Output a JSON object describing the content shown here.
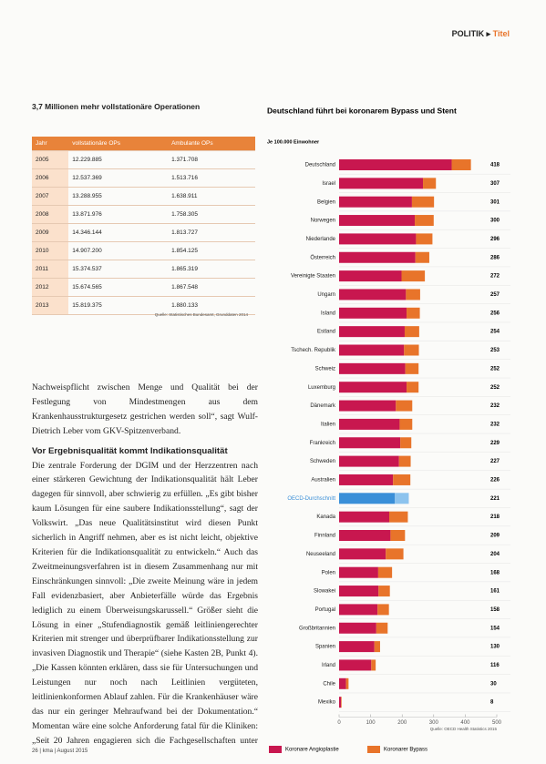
{
  "header": {
    "section": "POLITIK",
    "subsection": "Titel"
  },
  "table": {
    "title": "3,7 Millionen mehr vollstationäre Operationen",
    "columns": [
      "Jahr",
      "vollstationäre OPs",
      "Ambulante OPs"
    ],
    "rows": [
      [
        "2005",
        "12.229.885",
        "1.371.708"
      ],
      [
        "2006",
        "12.537.369",
        "1.513.716"
      ],
      [
        "2007",
        "13.288.955",
        "1.638.911"
      ],
      [
        "2008",
        "13.871.976",
        "1.758.305"
      ],
      [
        "2009",
        "14.346.144",
        "1.813.727"
      ],
      [
        "2010",
        "14.907.200",
        "1.854.125"
      ],
      [
        "2011",
        "15.374.537",
        "1.865.319"
      ],
      [
        "2012",
        "15.674.565",
        "1.867.548"
      ],
      [
        "2013",
        "15.819.375",
        "1.880.133"
      ]
    ],
    "source": "Quelle: Statistisches Bundesamt, Grunddaten 2014"
  },
  "article": {
    "intro": "Nachweispflicht zwischen Menge und Qualität bei der Festlegung von Mindestmengen aus dem Krankenhausstrukturgesetz gestrichen werden soll“, sagt Wulf-Dietrich Leber vom GKV-Spitzenverband.",
    "heading": "Vor Ergebnisqualität kommt Indikationsqualität",
    "body": "Die zentrale Forderung der DGIM und der Herzzentren nach einer stärkeren Gewichtung der Indikationsqualität hält Leber dagegen für sinnvoll, aber schwierig zu erfüllen. „Es gibt bisher kaum Lösungen für eine saubere Indikationsstellung“, sagt der Volkswirt. „Das neue Qualitätsinstitut wird diesen Punkt sicherlich in Angriff nehmen, aber es ist nicht leicht, objektive Kriterien für die Indikationsqualität zu entwickeln.“ Auch das Zweitmeinungsverfahren ist in diesem Zusammenhang nur mit Einschränkungen sinnvoll: „Die zweite Meinung wäre in jedem Fall evidenzbasiert, aber Anbieterfälle würde das Ergebnis lediglich zu einem Überweisungskarussell.“ Größer sieht die Lösung in einer „Stufendiagnostik gemäß leitliniengerechter Kriterien mit strenger und überprüfbarer Indikationsstellung zur invasiven Diagnostik und Therapie“ (siehe Kasten 2B, Punkt 4). „Die Kassen könnten erklären, dass sie für Untersuchungen und Leistungen nur noch nach Leitlinien vergüteten, leitlinienkonformen Ablauf zahlen. Für die Krankenhäuser wäre das nur ein geringer Mehraufwand bei der Dokumentation.“ Momentan wäre eine solche Anforderung fatal für die Kliniken: „Seit 20 Jahren engagieren sich die Fachgesellschaften unter dem Dach der AWMF für die Entwicklung hochwertiger Leitlinien zur Verbesserung der medizinischen Versorgung."
  },
  "chart_data": {
    "type": "bar",
    "orientation": "horizontal",
    "stacked": true,
    "title": "Deutschland führt bei koronarem Bypass und Stent",
    "subtitle": "Je 100.000 Einwohner",
    "categories": [
      "Deutschland",
      "Israel",
      "Belgien",
      "Norwegen",
      "Niederlande",
      "Österreich",
      "Vereinigte Staaten",
      "Ungarn",
      "Island",
      "Estland",
      "Tschech. Republik",
      "Schweiz",
      "Luxemburg",
      "Dänemark",
      "Italien",
      "Frankreich",
      "Schweden",
      "Australien",
      "OECD-Durchschnitt",
      "Kanada",
      "Finnland",
      "Neuseeland",
      "Polen",
      "Slowakei",
      "Portugal",
      "Großbritannien",
      "Spanien",
      "Irland",
      "Chile",
      "Mexiko"
    ],
    "series": [
      {
        "name": "Koronare Angioplastie",
        "color": "#c8174f",
        "highlight_color": "#3a8fd8",
        "values": [
          357,
          266,
          231,
          240,
          244,
          242,
          198,
          212,
          214,
          208,
          206,
          210,
          214,
          180,
          192,
          194,
          190,
          171,
          177,
          159,
          163,
          148,
          124,
          125,
          122,
          118,
          112,
          102,
          22,
          6
        ]
      },
      {
        "name": "Koronarer Bypass",
        "color": "#e8742a",
        "highlight_color": "#8cc3ee",
        "values": [
          61,
          41,
          70,
          60,
          52,
          44,
          74,
          45,
          42,
          46,
          47,
          42,
          38,
          52,
          40,
          35,
          37,
          55,
          44,
          59,
          46,
          56,
          44,
          36,
          36,
          36,
          18,
          14,
          8,
          2
        ]
      }
    ],
    "totals": [
      418,
      307,
      301,
      300,
      296,
      286,
      272,
      257,
      256,
      254,
      253,
      252,
      252,
      232,
      232,
      229,
      227,
      226,
      221,
      218,
      209,
      204,
      168,
      161,
      158,
      154,
      130,
      116,
      30,
      8
    ],
    "highlight": "OECD-Durchschnitt",
    "xlim": [
      0,
      500
    ],
    "xticks": [
      0,
      100,
      200,
      300,
      400,
      500
    ],
    "legend": "bottom",
    "source": "Quelle: OECD Health Statistics 2015"
  },
  "footer": {
    "page": "26",
    "text": "kma | August 2015"
  }
}
